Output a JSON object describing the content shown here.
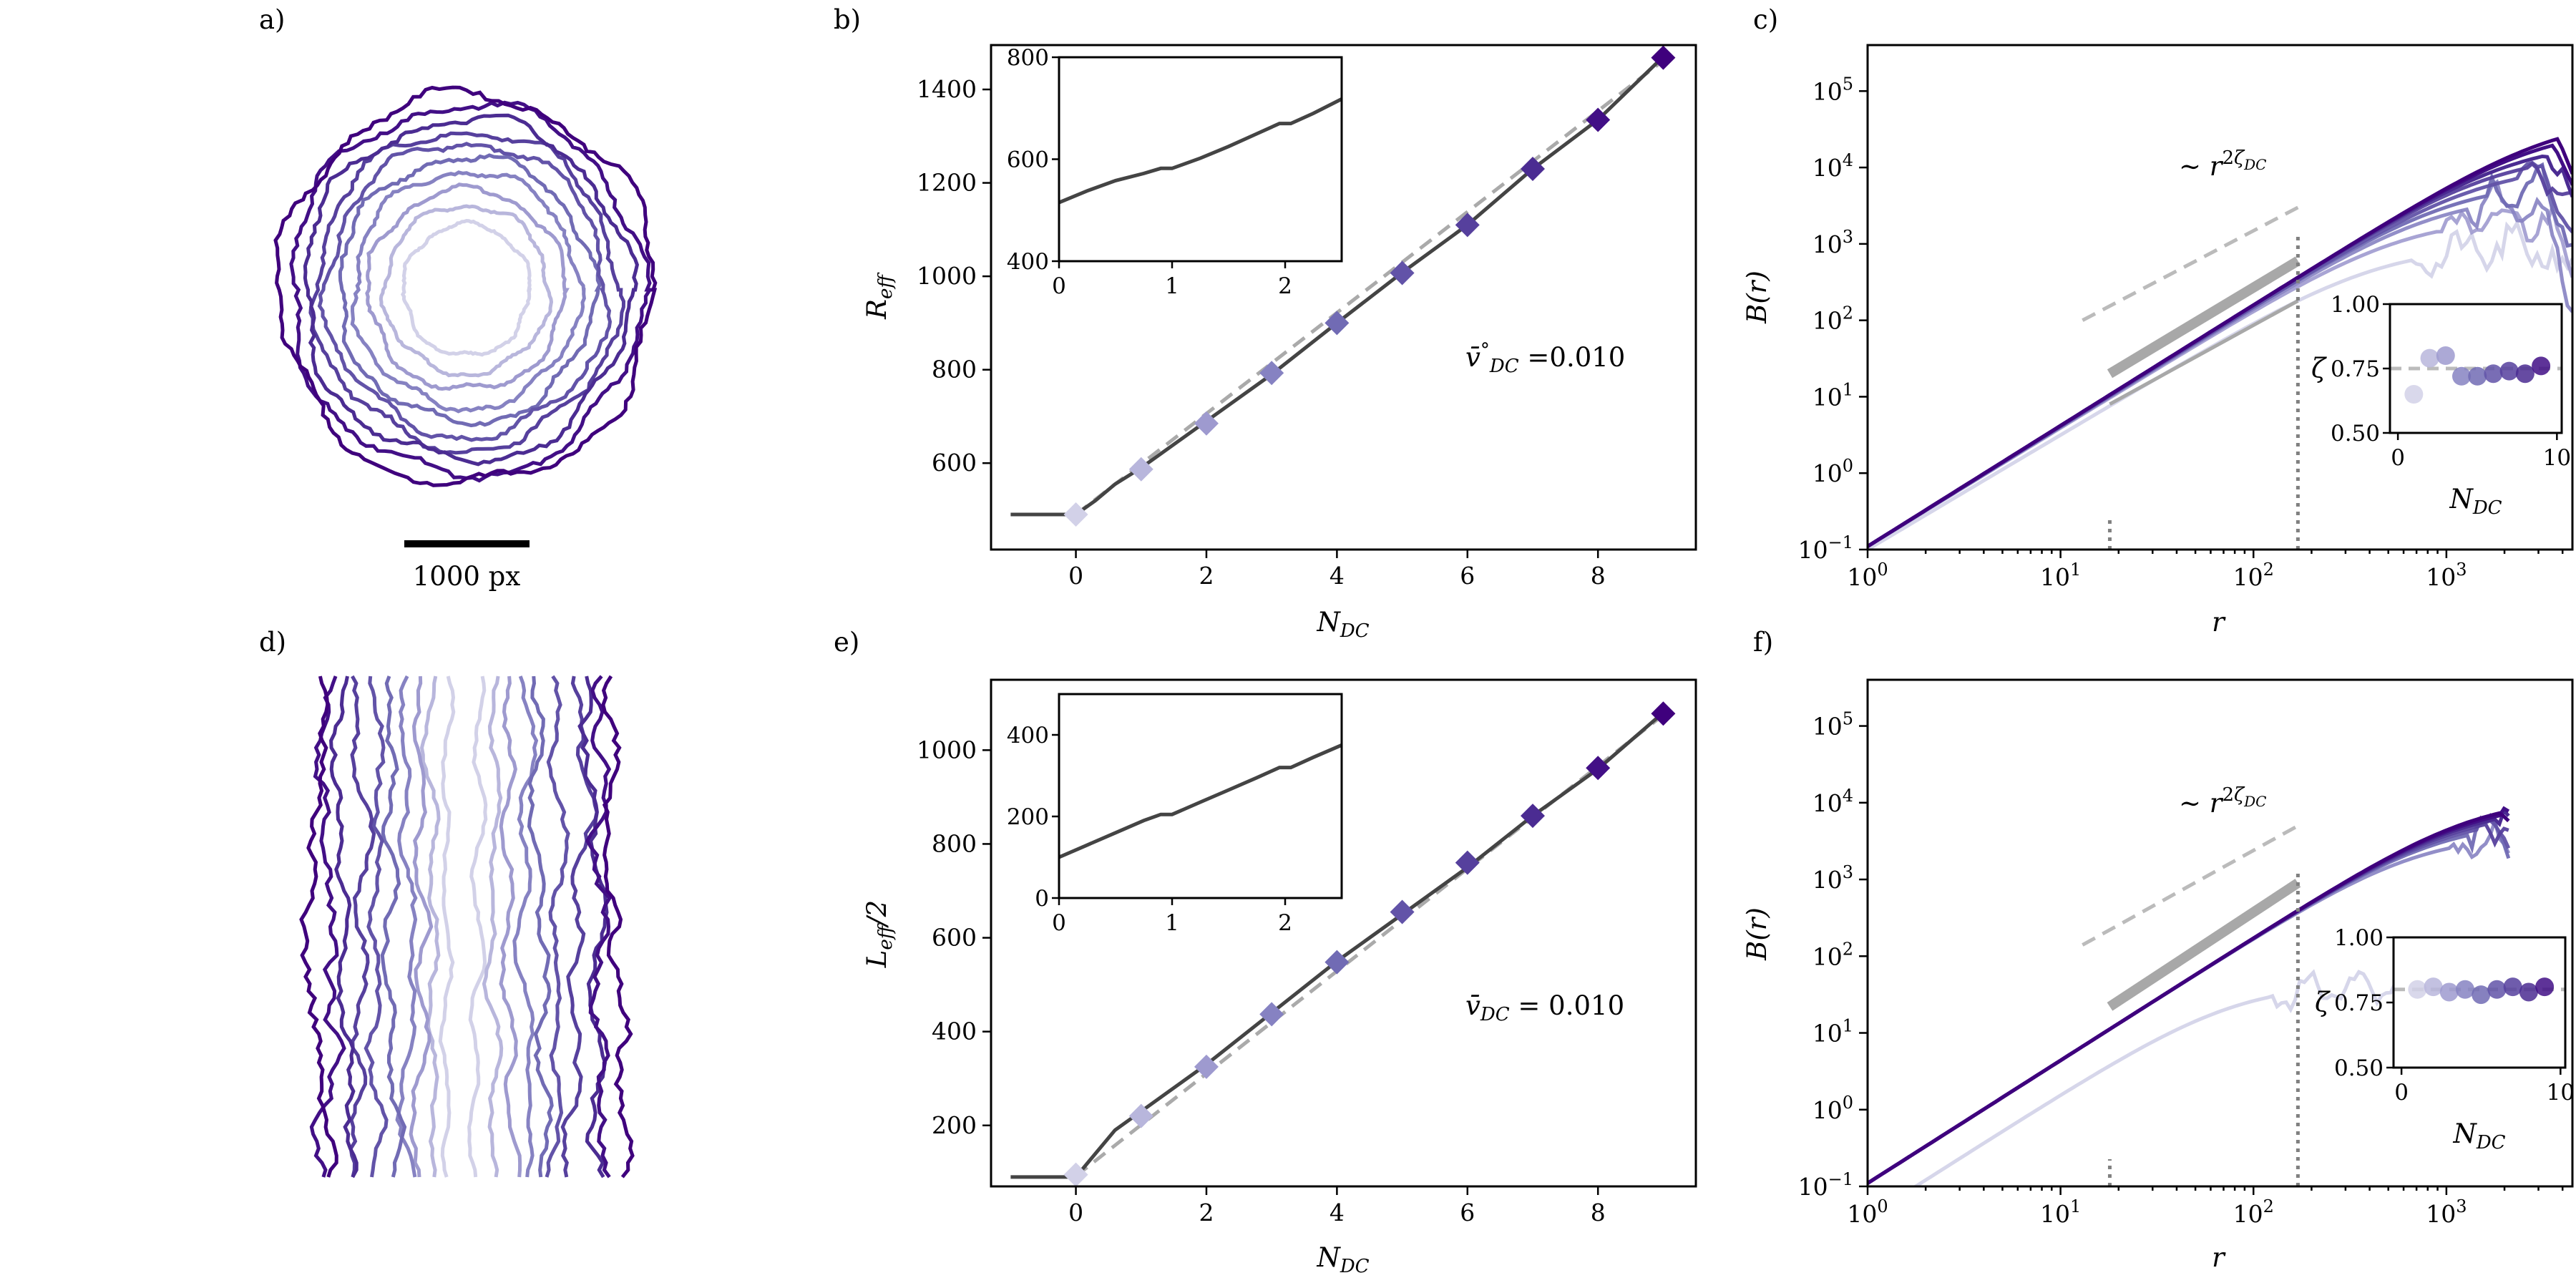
{
  "panel_labels": [
    "a)",
    "b)",
    "c)",
    "d)",
    "e)",
    "f)"
  ],
  "colors": {
    "palette": [
      "#d2d1e8",
      "#b8b6dc",
      "#9e9acf",
      "#8682c2",
      "#716bb4",
      "#6253a8",
      "#56409d",
      "#4b2c92",
      "#420f86",
      "#3f007d"
    ],
    "line_dark": "#444444",
    "dashed_gray": "#aaaaaa",
    "fit_gray": "#a8a8a8",
    "dotted": "#808080"
  },
  "panel_a": {
    "icon": "radial-droplet-contours",
    "scale_bar_label": "1000 px",
    "n_contours": 10
  },
  "panel_d": {
    "icon": "planar-front-contours",
    "n_fronts": 10
  },
  "chart_data": [
    {
      "panel": "b",
      "type": "line",
      "xlabel": "N_DC",
      "ylabel": "R_eff",
      "xlim": [
        -1.3,
        9.5
      ],
      "ylim": [
        415,
        1495
      ],
      "xticks": [
        "0",
        "2",
        "4",
        "6",
        "8"
      ],
      "yticks": [
        "600",
        "800",
        "1000",
        "1200",
        "1400"
      ],
      "annotation": "v̄°_DC =0.010",
      "series": [
        {
          "style": "solid",
          "x": [
            -1,
            -0.6,
            -0.2,
            0,
            0.3,
            0.6,
            1,
            2,
            3,
            4,
            5,
            6,
            7,
            8,
            9
          ],
          "y": [
            490,
            490,
            490,
            490,
            520,
            555,
            590,
            690,
            790,
            900,
            1008,
            1110,
            1230,
            1335,
            1470
          ]
        },
        {
          "style": "dashed",
          "x": [
            0,
            9
          ],
          "y": [
            490,
            1462
          ]
        },
        {
          "style": "markers",
          "x": [
            0,
            1,
            2,
            3,
            4,
            5,
            6,
            7,
            8,
            9
          ],
          "y": [
            490,
            587,
            685,
            793,
            900,
            1007,
            1110,
            1230,
            1335,
            1468
          ]
        }
      ],
      "inset": {
        "xlim": [
          0,
          2.5
        ],
        "ylim": [
          400,
          800
        ],
        "xticks": [
          "0",
          "1",
          "2"
        ],
        "yticks": [
          "400",
          "600",
          "800"
        ],
        "x": [
          0,
          0.25,
          0.5,
          0.75,
          0.9,
          1.0,
          1.25,
          1.5,
          1.75,
          1.95,
          2.05,
          2.25,
          2.5
        ],
        "y": [
          515,
          538,
          558,
          572,
          582,
          582,
          602,
          625,
          650,
          670,
          670,
          690,
          718
        ]
      }
    },
    {
      "panel": "c",
      "type": "line",
      "xlabel": "r",
      "ylabel": "B(r)",
      "scale": "log-log",
      "xlim": [
        1,
        4500
      ],
      "ylim": [
        0.1,
        400000
      ],
      "xticks": [
        "10^0",
        "10^1",
        "10^2",
        "10^3"
      ],
      "yticks": [
        "10^-1",
        "10^0",
        "10^1",
        "10^2",
        "10^3",
        "10^4",
        "10^5"
      ],
      "annotation": "~ r^{2ζ_DC}",
      "guide_line": {
        "x": [
          13,
          170
        ],
        "y": [
          100,
          3000
        ]
      },
      "vertical_dotted_x": [
        18,
        170
      ],
      "inset": {
        "xlabel": "N_DC",
        "ylabel": "ζ",
        "xlim": [
          -0.5,
          10.3
        ],
        "ylim": [
          0.5,
          1.0
        ],
        "xticks": [
          "0",
          "10"
        ],
        "yticks": [
          "0.50",
          "0.75",
          "1.00"
        ],
        "mean_line": 0.75,
        "x": [
          1,
          2,
          3,
          4,
          5,
          6,
          7,
          8,
          9
        ],
        "y": [
          0.65,
          0.79,
          0.8,
          0.72,
          0.72,
          0.73,
          0.74,
          0.73,
          0.76
        ]
      }
    },
    {
      "panel": "e",
      "type": "line",
      "xlabel": "N_DC",
      "ylabel": "L_eff/2",
      "xlim": [
        -1.3,
        9.5
      ],
      "ylim": [
        70,
        1150
      ],
      "xticks": [
        "0",
        "2",
        "4",
        "6",
        "8"
      ],
      "yticks": [
        "200",
        "400",
        "600",
        "800",
        "1000"
      ],
      "annotation": "v̄_DC = 0.010",
      "series": [
        {
          "style": "solid",
          "x": [
            -1,
            -0.6,
            -0.2,
            0,
            0.3,
            0.6,
            1,
            2,
            3,
            4,
            5,
            6,
            7,
            8,
            9
          ],
          "y": [
            90,
            90,
            90,
            90,
            140,
            190,
            230,
            330,
            440,
            550,
            650,
            750,
            860,
            960,
            1080
          ]
        },
        {
          "style": "dashed",
          "x": [
            0,
            9
          ],
          "y": [
            92,
            1075
          ]
        },
        {
          "style": "markers",
          "x": [
            0,
            1,
            2,
            3,
            4,
            5,
            6,
            7,
            8,
            9
          ],
          "y": [
            95,
            220,
            325,
            437,
            548,
            655,
            760,
            860,
            962,
            1078
          ]
        }
      ],
      "inset": {
        "xlim": [
          0,
          2.5
        ],
        "ylim": [
          0,
          500
        ],
        "xticks": [
          "0",
          "1",
          "2"
        ],
        "yticks": [
          "0",
          "200",
          "400"
        ],
        "x": [
          0,
          0.25,
          0.5,
          0.75,
          0.9,
          1.0,
          1.25,
          1.5,
          1.75,
          1.95,
          2.05,
          2.25,
          2.5
        ],
        "y": [
          100,
          130,
          160,
          190,
          205,
          205,
          235,
          265,
          295,
          320,
          320,
          345,
          375
        ]
      }
    },
    {
      "panel": "f",
      "type": "line",
      "xlabel": "r",
      "ylabel": "B(r)",
      "scale": "log-log",
      "xlim": [
        1,
        4500
      ],
      "ylim": [
        0.1,
        400000
      ],
      "xticks": [
        "10^0",
        "10^1",
        "10^2",
        "10^3"
      ],
      "yticks": [
        "10^-1",
        "10^0",
        "10^1",
        "10^2",
        "10^3",
        "10^4",
        "10^5"
      ],
      "annotation": "~ r^{2ζ_DC}",
      "guide_line": {
        "x": [
          13,
          170
        ],
        "y": [
          140,
          5000
        ]
      },
      "vertical_dotted_x": [
        18,
        170
      ],
      "inset": {
        "xlabel": "N_DC",
        "ylabel": "ζ",
        "xlim": [
          -0.5,
          10.3
        ],
        "ylim": [
          0.5,
          1.0
        ],
        "xticks": [
          "0",
          "10"
        ],
        "yticks": [
          "0.50",
          "0.75",
          "1.00"
        ],
        "mean_line": 0.8,
        "x": [
          1,
          2,
          3,
          4,
          5,
          6,
          7,
          8,
          9
        ],
        "y": [
          0.8,
          0.81,
          0.79,
          0.8,
          0.78,
          0.8,
          0.81,
          0.79,
          0.81
        ]
      }
    }
  ]
}
